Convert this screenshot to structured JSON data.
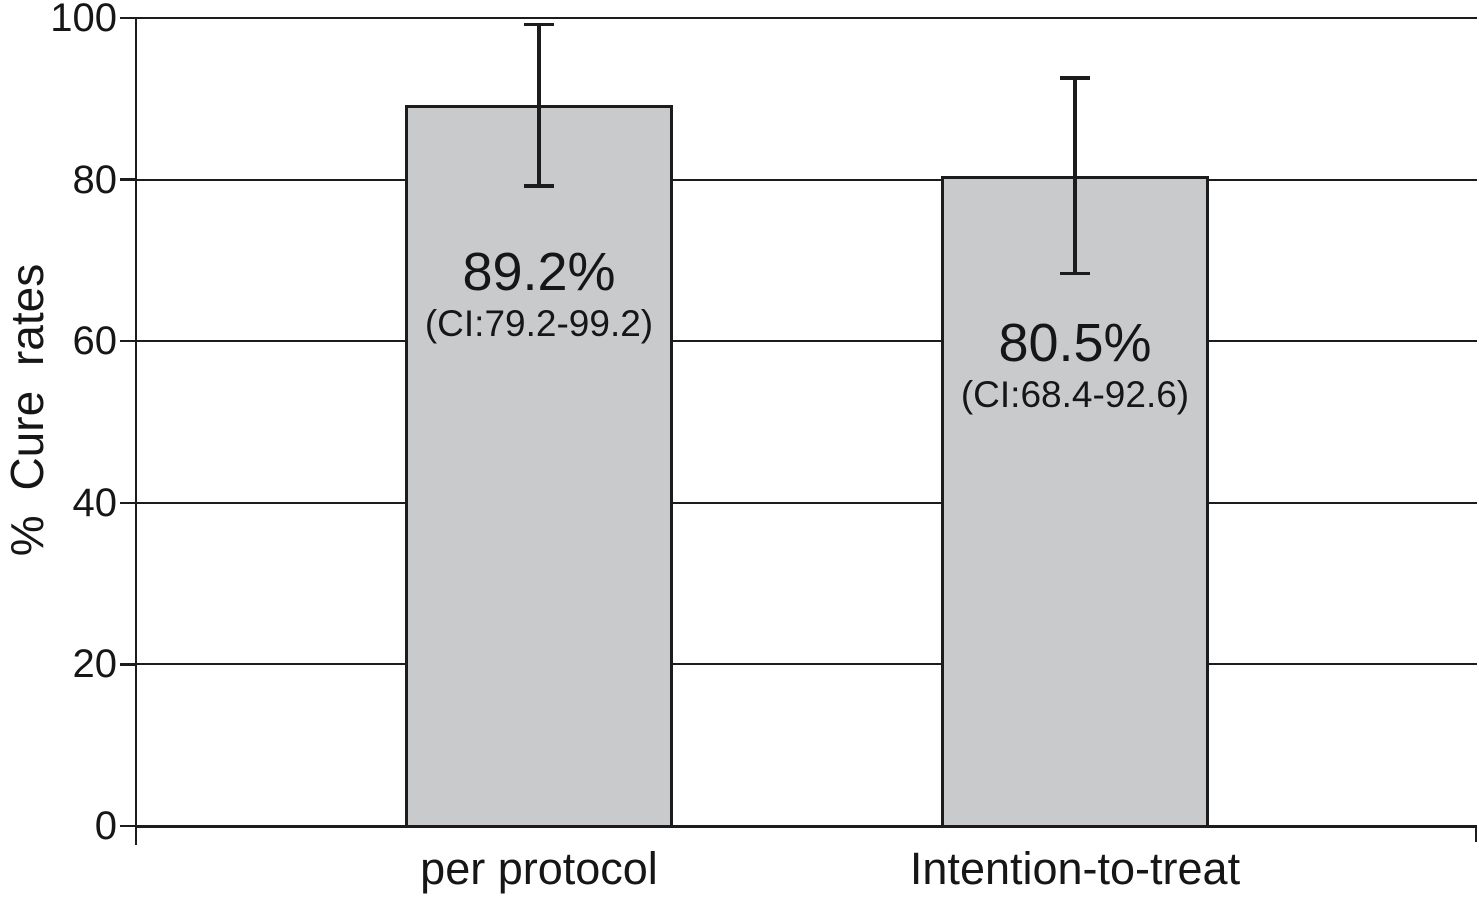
{
  "chart_data": {
    "type": "bar",
    "title": "",
    "ylabel": "% Cure rates",
    "xlabel": "",
    "categories": [
      "per protocol",
      "Intention-to-treat"
    ],
    "series": [
      {
        "name": "Cure rate",
        "values": [
          89.2,
          80.5
        ],
        "ci_low": [
          79.2,
          68.4
        ],
        "ci_high": [
          99.2,
          92.6
        ]
      }
    ],
    "bar_text": [
      {
        "value_label": "89.2%",
        "ci_label": "(CI:79.2-99.2)"
      },
      {
        "value_label": "80.5%",
        "ci_label": "(CI:68.4-92.6)"
      }
    ],
    "ylim": [
      0,
      100
    ],
    "yticks": [
      0,
      20,
      40,
      60,
      80,
      100
    ],
    "grid": true,
    "legend": "none",
    "error_bars": true,
    "colors": {
      "bar_fill": "#c9cacc",
      "bar_border": "#1c1c1c",
      "line": "#1c1c1c",
      "text": "#161616",
      "background": "#ffffff"
    }
  }
}
